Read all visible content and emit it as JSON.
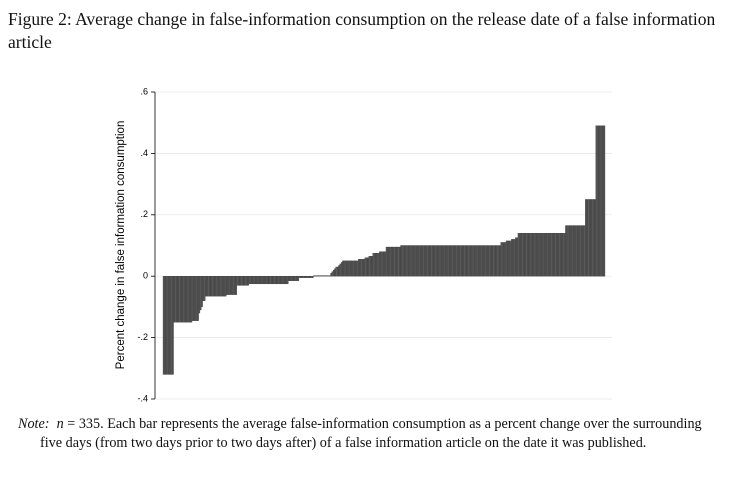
{
  "chart_data": {
    "type": "bar",
    "title": "Figure 2:  Average change in false-information consumption on the release date of a false information article",
    "y_label": "Percent change in false information consumption",
    "ylim": [
      -0.4,
      0.6
    ],
    "yticks": [
      {
        "value": 0.6,
        "label": ".6"
      },
      {
        "value": 0.4,
        "label": ".4"
      },
      {
        "value": 0.2,
        "label": ".2"
      },
      0,
      {
        "value": -0.2,
        "label": "-.2"
      },
      {
        "value": -0.4,
        "label": "-.4"
      }
    ],
    "grid": true,
    "color": "#5a5a5a",
    "values": [
      -0.32,
      -0.32,
      -0.32,
      -0.32,
      -0.32,
      -0.32,
      -0.32,
      -0.32,
      -0.15,
      -0.15,
      -0.15,
      -0.15,
      -0.15,
      -0.15,
      -0.15,
      -0.15,
      -0.15,
      -0.15,
      -0.15,
      -0.15,
      -0.15,
      -0.15,
      -0.145,
      -0.145,
      -0.145,
      -0.145,
      -0.145,
      -0.12,
      -0.11,
      -0.1,
      -0.08,
      -0.08,
      -0.065,
      -0.065,
      -0.065,
      -0.065,
      -0.065,
      -0.065,
      -0.065,
      -0.065,
      -0.065,
      -0.065,
      -0.065,
      -0.065,
      -0.065,
      -0.065,
      -0.065,
      -0.065,
      -0.06,
      -0.06,
      -0.06,
      -0.06,
      -0.06,
      -0.06,
      -0.06,
      -0.06,
      -0.03,
      -0.03,
      -0.03,
      -0.03,
      -0.03,
      -0.03,
      -0.03,
      -0.03,
      -0.03,
      -0.025,
      -0.025,
      -0.025,
      -0.025,
      -0.025,
      -0.025,
      -0.025,
      -0.025,
      -0.025,
      -0.025,
      -0.025,
      -0.025,
      -0.025,
      -0.025,
      -0.025,
      -0.025,
      -0.025,
      -0.025,
      -0.025,
      -0.025,
      -0.025,
      -0.025,
      -0.025,
      -0.025,
      -0.025,
      -0.025,
      -0.025,
      -0.025,
      -0.025,
      -0.025,
      -0.015,
      -0.015,
      -0.015,
      -0.015,
      -0.015,
      -0.015,
      -0.015,
      -0.015,
      -0.005,
      -0.005,
      -0.005,
      -0.005,
      -0.005,
      -0.005,
      -0.005,
      -0.005,
      -0.005,
      -0.005,
      -0.005,
      0.002,
      0.002,
      0.002,
      0.002,
      0.002,
      0.002,
      0.002,
      0.002,
      0.002,
      0.002,
      0.002,
      0.002,
      0.002,
      0.01,
      0.015,
      0.02,
      0.025,
      0.03,
      0.03,
      0.035,
      0.04,
      0.045,
      0.05,
      0.05,
      0.05,
      0.05,
      0.05,
      0.05,
      0.05,
      0.05,
      0.05,
      0.05,
      0.05,
      0.05,
      0.055,
      0.055,
      0.055,
      0.055,
      0.055,
      0.06,
      0.06,
      0.06,
      0.065,
      0.065,
      0.065,
      0.075,
      0.075,
      0.075,
      0.075,
      0.075,
      0.08,
      0.08,
      0.08,
      0.08,
      0.08,
      0.095,
      0.095,
      0.095,
      0.095,
      0.095,
      0.095,
      0.095,
      0.095,
      0.095,
      0.095,
      0.095,
      0.1,
      0.1,
      0.1,
      0.1,
      0.1,
      0.1,
      0.1,
      0.1,
      0.1,
      0.1,
      0.1,
      0.1,
      0.1,
      0.1,
      0.1,
      0.1,
      0.1,
      0.1,
      0.1,
      0.1,
      0.1,
      0.1,
      0.1,
      0.1,
      0.1,
      0.1,
      0.1,
      0.1,
      0.1,
      0.1,
      0.1,
      0.1,
      0.1,
      0.1,
      0.1,
      0.1,
      0.1,
      0.1,
      0.1,
      0.1,
      0.1,
      0.1,
      0.1,
      0.1,
      0.1,
      0.1,
      0.1,
      0.1,
      0.1,
      0.1,
      0.1,
      0.1,
      0.1,
      0.1,
      0.1,
      0.1,
      0.1,
      0.1,
      0.1,
      0.1,
      0.1,
      0.1,
      0.1,
      0.1,
      0.1,
      0.1,
      0.1,
      0.1,
      0.1,
      0.1,
      0.1,
      0.1,
      0.1,
      0.1,
      0.1,
      0.1,
      0.11,
      0.11,
      0.11,
      0.11,
      0.115,
      0.115,
      0.115,
      0.115,
      0.12,
      0.12,
      0.12,
      0.125,
      0.125,
      0.14,
      0.14,
      0.14,
      0.14,
      0.14,
      0.14,
      0.14,
      0.14,
      0.14,
      0.14,
      0.14,
      0.14,
      0.14,
      0.14,
      0.14,
      0.14,
      0.14,
      0.14,
      0.14,
      0.14,
      0.14,
      0.14,
      0.14,
      0.14,
      0.14,
      0.14,
      0.14,
      0.14,
      0.14,
      0.14,
      0.14,
      0.14,
      0.14,
      0.14,
      0.14,
      0.14,
      0.165,
      0.165,
      0.165,
      0.165,
      0.165,
      0.165,
      0.165,
      0.165,
      0.165,
      0.165,
      0.165,
      0.165,
      0.165,
      0.165,
      0.165,
      0.25,
      0.25,
      0.25,
      0.25,
      0.25,
      0.25,
      0.25,
      0.25,
      0.49,
      0.49,
      0.49,
      0.49,
      0.49,
      0.49,
      0.49
    ]
  },
  "note": {
    "label": "Note:",
    "n": "n",
    "text": "= 335. Each bar represents the average false-information consumption as a percent change over the surrounding five days (from two days prior to two days after) of a false information article on the date it was published."
  }
}
